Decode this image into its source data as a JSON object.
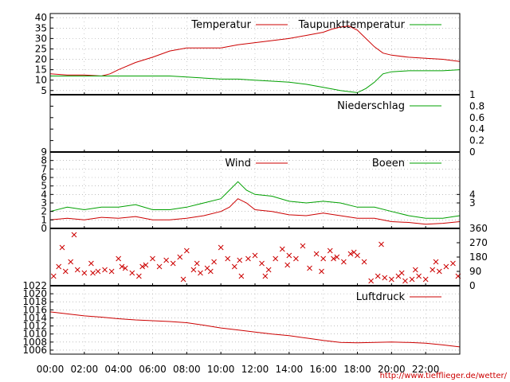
{
  "source_url": "http://www.tiefflieger.de/wetter/",
  "colors": {
    "red": "#cc0000",
    "green": "#00a000",
    "grid": "#999999",
    "axis": "#000000"
  },
  "chart_data": [
    {
      "type": "line",
      "xlim": [
        0,
        24
      ],
      "ylim": [
        3,
        42
      ],
      "yticks": [
        5,
        10,
        15,
        20,
        25,
        30,
        35,
        40
      ],
      "grid": true,
      "legend": "top-right",
      "series": [
        {
          "name": "Temperatur",
          "color": "#cc0000",
          "x": [
            0,
            1,
            2,
            3,
            3.5,
            4,
            5,
            6,
            7,
            8,
            9,
            10,
            11,
            12,
            13,
            14,
            15,
            16,
            16.5,
            17,
            17.5,
            18,
            18.5,
            19,
            19.5,
            20,
            21,
            22,
            23,
            24
          ],
          "y": [
            13,
            12.5,
            12.5,
            12,
            13,
            15,
            18.5,
            21,
            24,
            25.5,
            25.5,
            25.5,
            27,
            28,
            29,
            30,
            31.5,
            33,
            34.5,
            35.5,
            36,
            34,
            30,
            26,
            23,
            22,
            21,
            20.5,
            20,
            19
          ]
        },
        {
          "name": "Taupunkttemperatur",
          "color": "#00a000",
          "x": [
            0,
            1,
            2,
            3,
            4,
            5,
            6,
            7,
            8,
            9,
            10,
            11,
            12,
            13,
            14,
            15,
            16,
            17,
            17.5,
            18,
            18.5,
            19,
            19.5,
            20,
            21,
            22,
            23,
            24
          ],
          "y": [
            12,
            12,
            12,
            12,
            12,
            12,
            12,
            12,
            11.5,
            11,
            10.5,
            10.5,
            10,
            9.5,
            9,
            8,
            6.5,
            5,
            4.5,
            4,
            6,
            9,
            13,
            14,
            14.5,
            14.5,
            14.5,
            15
          ]
        }
      ]
    },
    {
      "type": "line",
      "xlim": [
        0,
        24
      ],
      "ylim": [
        0,
        1
      ],
      "yticks": [
        0,
        0.2,
        0.4,
        0.6,
        0.8,
        1
      ],
      "grid": false,
      "legend": "top-right",
      "series": [
        {
          "name": "Niederschlag",
          "color": "#00a000",
          "x": [
            0,
            24
          ],
          "y": [
            0,
            0
          ]
        }
      ]
    },
    {
      "type": "line",
      "xlim": [
        0,
        24
      ],
      "ylim": [
        0,
        9
      ],
      "yticks": [
        0,
        1,
        2,
        3,
        4,
        5,
        6,
        7,
        8,
        9
      ],
      "yticks_right": [
        3,
        4
      ],
      "grid": true,
      "legend": "top-right",
      "series": [
        {
          "name": "Wind",
          "color": "#cc0000",
          "x": [
            0,
            1,
            2,
            3,
            4,
            5,
            6,
            7,
            8,
            9,
            10,
            10.5,
            11,
            11.5,
            12,
            13,
            14,
            15,
            16,
            17,
            18,
            19,
            20,
            21,
            22,
            23,
            24
          ],
          "y": [
            1,
            1.2,
            1,
            1.3,
            1.2,
            1.4,
            1,
            1,
            1.2,
            1.5,
            2,
            2.5,
            3.5,
            3,
            2.2,
            2,
            1.6,
            1.5,
            1.8,
            1.5,
            1.2,
            1.2,
            0.8,
            0.7,
            0.5,
            0.6,
            0.8
          ]
        },
        {
          "name": "Boeen",
          "color": "#00a000",
          "x": [
            0,
            1,
            2,
            3,
            4,
            5,
            6,
            7,
            8,
            9,
            10,
            10.5,
            11,
            11.5,
            12,
            13,
            14,
            15,
            16,
            17,
            18,
            19,
            20,
            21,
            22,
            23,
            24
          ],
          "y": [
            2,
            2.5,
            2.2,
            2.5,
            2.5,
            2.8,
            2.2,
            2.2,
            2.5,
            3,
            3.5,
            4.5,
            5.5,
            4.5,
            4,
            3.8,
            3.2,
            3,
            3.2,
            3,
            2.5,
            2.5,
            2,
            1.5,
            1.2,
            1.2,
            1.5
          ]
        }
      ]
    },
    {
      "type": "scatter",
      "xlim": [
        0,
        24
      ],
      "ylim": [
        0,
        360
      ],
      "yticks_right": [
        0,
        90,
        180,
        270,
        360
      ],
      "grid": false,
      "series": [
        {
          "color": "#cc0000",
          "marker": "x",
          "x": [
            0.2,
            0.5,
            0.9,
            1.2,
            1.6,
            2,
            2.4,
            2.8,
            3.2,
            3.6,
            4,
            4.4,
            4.8,
            5.2,
            5.6,
            6,
            6.4,
            6.8,
            7.2,
            7.6,
            8,
            8.4,
            8.8,
            9.2,
            9.6,
            10,
            10.4,
            10.8,
            11.2,
            11.6,
            12,
            12.4,
            12.8,
            13.2,
            13.6,
            14,
            14.4,
            14.8,
            15.2,
            15.6,
            16,
            16.4,
            16.8,
            17.2,
            17.6,
            18,
            18.4,
            18.8,
            19.2,
            19.6,
            20,
            20.4,
            20.8,
            21.2,
            21.6,
            22,
            22.4,
            22.8,
            23.2,
            23.6,
            23.9,
            0.7,
            2.5,
            4.2,
            7.8,
            9.4,
            11.1,
            13.9,
            15.9,
            17.8,
            20.6,
            22.6,
            1.4,
            5.4,
            8.6,
            12.6,
            16.6,
            19.4,
            21.4
          ],
          "y": [
            60,
            120,
            90,
            150,
            100,
            80,
            140,
            90,
            100,
            90,
            170,
            110,
            80,
            60,
            130,
            170,
            120,
            160,
            140,
            180,
            220,
            100,
            80,
            110,
            150,
            240,
            170,
            120,
            60,
            170,
            190,
            140,
            100,
            170,
            230,
            190,
            170,
            250,
            110,
            200,
            170,
            220,
            180,
            150,
            200,
            190,
            150,
            30,
            60,
            50,
            40,
            60,
            30,
            40,
            60,
            40,
            100,
            90,
            120,
            140,
            60,
            240,
            80,
            120,
            40,
            90,
            160,
            130,
            90,
            210,
            80,
            150,
            320,
            120,
            140,
            60,
            170,
            260,
            100
          ]
        }
      ]
    },
    {
      "type": "line",
      "xlim": [
        0,
        24
      ],
      "ylim": [
        1005,
        1022
      ],
      "yticks": [
        1006,
        1008,
        1010,
        1012,
        1014,
        1016,
        1018,
        1020,
        1022
      ],
      "grid": true,
      "legend": "top-right",
      "xticks": [
        "00:00",
        "02:00",
        "04:00",
        "06:00",
        "08:00",
        "10:00",
        "12:00",
        "14:00",
        "16:00",
        "18:00",
        "20:00",
        "22:00"
      ],
      "series": [
        {
          "name": "Luftdruck",
          "color": "#cc0000",
          "x": [
            0,
            1,
            2,
            3,
            4,
            5,
            6,
            7,
            8,
            9,
            10,
            11,
            12,
            13,
            14,
            15,
            16,
            17,
            18,
            19,
            20,
            21,
            22,
            23,
            24
          ],
          "y": [
            1015.5,
            1015,
            1014.5,
            1014.2,
            1013.8,
            1013.5,
            1013.3,
            1013.1,
            1012.8,
            1012.2,
            1011.5,
            1011,
            1010.5,
            1010,
            1009.6,
            1009,
            1008.4,
            1007.9,
            1007.8,
            1007.9,
            1008,
            1007.9,
            1007.7,
            1007.3,
            1006.8
          ]
        }
      ]
    }
  ]
}
